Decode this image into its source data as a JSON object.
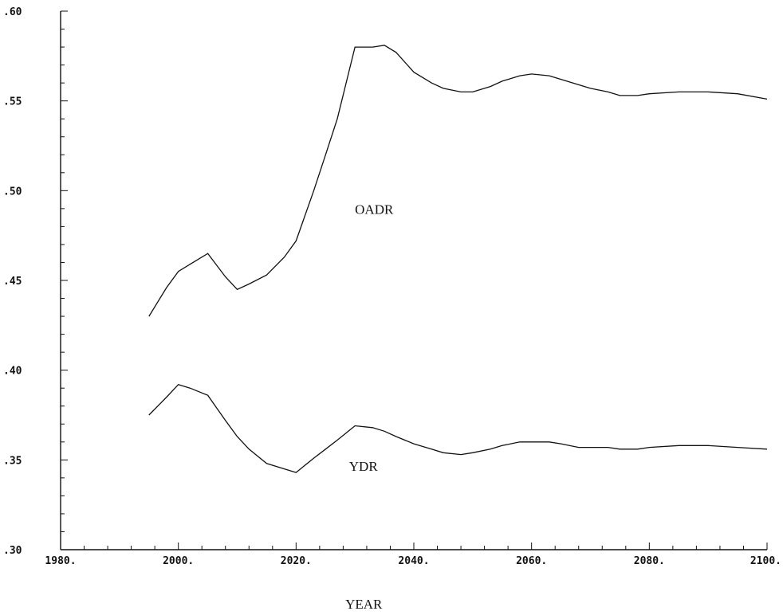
{
  "chart_data": {
    "type": "line",
    "title": "",
    "xlabel": "YEAR",
    "ylabel": "",
    "xlim": [
      1980,
      2100
    ],
    "ylim": [
      0.3,
      0.6
    ],
    "grid": false,
    "x_tick_labels": [
      "1980.",
      "2000.",
      "2020.",
      "2040.",
      "2060.",
      "2080.",
      "2100."
    ],
    "x_tick_values": [
      1980,
      2000,
      2020,
      2040,
      2060,
      2080,
      2100
    ],
    "y_tick_labels": [
      ".30",
      ".35",
      ".40",
      ".45",
      ".50",
      ".55",
      ".60"
    ],
    "y_tick_values": [
      0.3,
      0.35,
      0.4,
      0.45,
      0.5,
      0.55,
      0.6
    ],
    "annotations": [
      {
        "text": "OADR",
        "x": 2030,
        "y": 0.487
      },
      {
        "text": "YDR",
        "x": 2029,
        "y": 0.344
      },
      {
        "text": "YEAR"
      }
    ],
    "series": [
      {
        "name": "OADR",
        "x": [
          1995,
          1998,
          2000,
          2002,
          2005,
          2008,
          2010,
          2012,
          2015,
          2018,
          2020,
          2023,
          2025,
          2027,
          2030,
          2033,
          2035,
          2037,
          2040,
          2043,
          2045,
          2048,
          2050,
          2053,
          2055,
          2058,
          2060,
          2063,
          2065,
          2068,
          2070,
          2073,
          2075,
          2078,
          2080,
          2085,
          2090,
          2095,
          2100
        ],
        "y": [
          0.43,
          0.446,
          0.455,
          0.459,
          0.465,
          0.452,
          0.445,
          0.448,
          0.453,
          0.463,
          0.472,
          0.5,
          0.52,
          0.54,
          0.58,
          0.58,
          0.581,
          0.577,
          0.566,
          0.56,
          0.557,
          0.555,
          0.555,
          0.558,
          0.561,
          0.564,
          0.565,
          0.564,
          0.562,
          0.559,
          0.557,
          0.555,
          0.553,
          0.553,
          0.554,
          0.555,
          0.555,
          0.554,
          0.551
        ]
      },
      {
        "name": "YDR",
        "x": [
          1995,
          1998,
          2000,
          2002,
          2005,
          2008,
          2010,
          2012,
          2015,
          2018,
          2020,
          2023,
          2025,
          2027,
          2030,
          2033,
          2035,
          2037,
          2040,
          2043,
          2045,
          2048,
          2050,
          2053,
          2055,
          2058,
          2060,
          2063,
          2065,
          2068,
          2070,
          2073,
          2075,
          2078,
          2080,
          2085,
          2090,
          2095,
          2100
        ],
        "y": [
          0.375,
          0.385,
          0.392,
          0.39,
          0.386,
          0.372,
          0.363,
          0.356,
          0.348,
          0.345,
          0.343,
          0.351,
          0.356,
          0.361,
          0.369,
          0.368,
          0.366,
          0.363,
          0.359,
          0.356,
          0.354,
          0.353,
          0.354,
          0.356,
          0.358,
          0.36,
          0.36,
          0.36,
          0.359,
          0.357,
          0.357,
          0.357,
          0.356,
          0.356,
          0.357,
          0.358,
          0.358,
          0.357,
          0.356
        ]
      }
    ]
  }
}
